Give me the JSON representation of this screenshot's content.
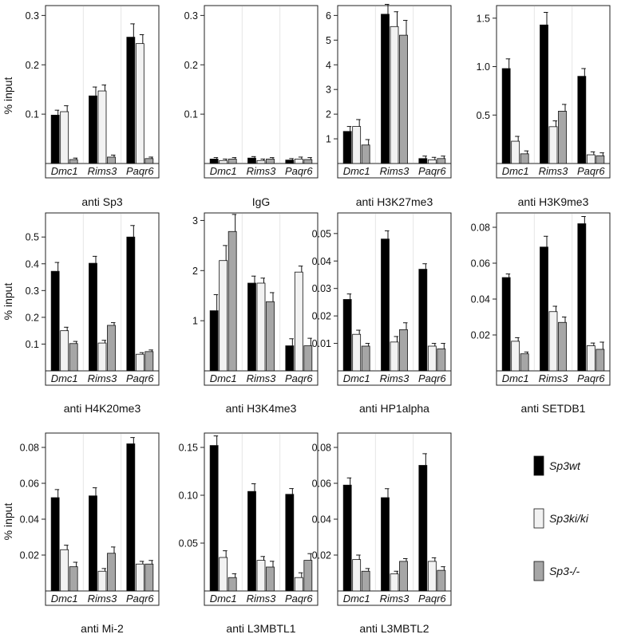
{
  "colors": {
    "Sp3wt": "#000000",
    "Sp3ki/ki": "#f2f2f2",
    "Sp3-/-": "#a6a6a6"
  },
  "legend": [
    {
      "name": "Sp3wt"
    },
    {
      "name": "Sp3ki/ki"
    },
    {
      "name": "Sp3-/-"
    }
  ],
  "y_axis_label": "% input",
  "chart_data": [
    {
      "type": "bar",
      "title": "anti Sp3",
      "categories": [
        "Dmc1",
        "Rims3",
        "Paqr6"
      ],
      "ylim": [
        0,
        0.32
      ],
      "yticks": [
        0.1,
        0.2,
        0.3
      ],
      "ytick_labels": [
        "0.1",
        "0.2",
        "0.3"
      ],
      "series": [
        {
          "name": "Sp3wt",
          "values": [
            0.098,
            0.137,
            0.256
          ],
          "errors": [
            0.01,
            0.018,
            0.027
          ]
        },
        {
          "name": "Sp3ki/ki",
          "values": [
            0.105,
            0.147,
            0.243
          ],
          "errors": [
            0.012,
            0.012,
            0.018
          ]
        },
        {
          "name": "Sp3-/-",
          "values": [
            0.008,
            0.013,
            0.01
          ],
          "errors": [
            0.003,
            0.004,
            0.003
          ]
        }
      ]
    },
    {
      "type": "bar",
      "title": "IgG",
      "categories": [
        "Dmc1",
        "Rims3",
        "Paqr6"
      ],
      "ylim": [
        0,
        0.32
      ],
      "yticks": [
        0.1,
        0.2,
        0.3
      ],
      "ytick_labels": [
        "0.1",
        "0.2",
        "0.3"
      ],
      "series": [
        {
          "name": "Sp3wt",
          "values": [
            0.009,
            0.011,
            0.007
          ],
          "errors": [
            0.003,
            0.003,
            0.003
          ]
        },
        {
          "name": "Sp3ki/ki",
          "values": [
            0.006,
            0.006,
            0.009
          ],
          "errors": [
            0.003,
            0.003,
            0.004
          ]
        },
        {
          "name": "Sp3-/-",
          "values": [
            0.009,
            0.009,
            0.008
          ],
          "errors": [
            0.003,
            0.003,
            0.004
          ]
        }
      ]
    },
    {
      "type": "bar",
      "title": "anti H3K27me3",
      "categories": [
        "Dmc1",
        "Rims3",
        "Paqr6"
      ],
      "ylim": [
        0,
        6.4
      ],
      "yticks": [
        1,
        2,
        3,
        4,
        5,
        6
      ],
      "ytick_labels": [
        "1",
        "2",
        "3",
        "4",
        "5",
        "6"
      ],
      "series": [
        {
          "name": "Sp3wt",
          "values": [
            1.3,
            6.05,
            0.2
          ],
          "errors": [
            0.2,
            0.4,
            0.1
          ]
        },
        {
          "name": "Sp3ki/ki",
          "values": [
            1.5,
            5.55,
            0.15
          ],
          "errors": [
            0.28,
            0.6,
            0.1
          ]
        },
        {
          "name": "Sp3-/-",
          "values": [
            0.75,
            5.2,
            0.2
          ],
          "errors": [
            0.22,
            0.6,
            0.1
          ]
        }
      ]
    },
    {
      "type": "bar",
      "title": "anti H3K9me3",
      "categories": [
        "Dmc1",
        "Rims3",
        "Paqr6"
      ],
      "ylim": [
        0,
        1.63
      ],
      "yticks": [
        0.5,
        1.0,
        1.5
      ],
      "ytick_labels": [
        "0.5",
        "1.0",
        "1.5"
      ],
      "series": [
        {
          "name": "Sp3wt",
          "values": [
            0.98,
            1.43,
            0.9
          ],
          "errors": [
            0.1,
            0.13,
            0.08
          ]
        },
        {
          "name": "Sp3ki/ki",
          "values": [
            0.23,
            0.38,
            0.09
          ],
          "errors": [
            0.05,
            0.06,
            0.03
          ]
        },
        {
          "name": "Sp3-/-",
          "values": [
            0.1,
            0.54,
            0.08
          ],
          "errors": [
            0.03,
            0.07,
            0.03
          ]
        }
      ]
    },
    {
      "type": "bar",
      "title": "anti H4K20me3",
      "categories": [
        "Dmc1",
        "Rims3",
        "Paqr6"
      ],
      "ylim": [
        0,
        0.59
      ],
      "yticks": [
        0.1,
        0.2,
        0.3,
        0.4,
        0.5
      ],
      "ytick_labels": [
        "0.1",
        "0.2",
        "0.3",
        "0.4",
        "0.5"
      ],
      "series": [
        {
          "name": "Sp3wt",
          "values": [
            0.372,
            0.402,
            0.5
          ],
          "errors": [
            0.033,
            0.026,
            0.043
          ]
        },
        {
          "name": "Sp3ki/ki",
          "values": [
            0.15,
            0.104,
            0.062
          ],
          "errors": [
            0.013,
            0.01,
            0.006
          ]
        },
        {
          "name": "Sp3-/-",
          "values": [
            0.102,
            0.17,
            0.072
          ],
          "errors": [
            0.008,
            0.01,
            0.006
          ]
        }
      ]
    },
    {
      "type": "bar",
      "title": "anti H3K4me3",
      "categories": [
        "Dmc1",
        "Rims3",
        "Paqr6"
      ],
      "ylim": [
        0,
        3.15
      ],
      "yticks": [
        1,
        2,
        3
      ],
      "ytick_labels": [
        "1",
        "2",
        "3"
      ],
      "series": [
        {
          "name": "Sp3wt",
          "values": [
            1.2,
            1.75,
            0.5
          ],
          "errors": [
            0.32,
            0.14,
            0.14
          ]
        },
        {
          "name": "Sp3ki/ki",
          "values": [
            2.2,
            1.75,
            1.97
          ],
          "errors": [
            0.3,
            0.1,
            0.12
          ]
        },
        {
          "name": "Sp3-/-",
          "values": [
            2.78,
            1.38,
            0.5
          ],
          "errors": [
            0.34,
            0.18,
            0.15
          ]
        }
      ]
    },
    {
      "type": "bar",
      "title": "anti HP1alpha",
      "categories": [
        "Dmc1",
        "Rims3",
        "Paqr6"
      ],
      "ylim": [
        0,
        0.0575
      ],
      "yticks": [
        0.01,
        0.02,
        0.03,
        0.04,
        0.05
      ],
      "ytick_labels": [
        "0.01",
        "0.02",
        "0.03",
        "0.04",
        "0.05"
      ],
      "series": [
        {
          "name": "Sp3wt",
          "values": [
            0.026,
            0.048,
            0.037
          ],
          "errors": [
            0.002,
            0.003,
            0.002
          ]
        },
        {
          "name": "Sp3ki/ki",
          "values": [
            0.0133,
            0.0105,
            0.009
          ],
          "errors": [
            0.0015,
            0.002,
            0.001
          ]
        },
        {
          "name": "Sp3-/-",
          "values": [
            0.009,
            0.015,
            0.008
          ],
          "errors": [
            0.001,
            0.0025,
            0.002
          ]
        }
      ]
    },
    {
      "type": "bar",
      "title": "anti SETDB1",
      "categories": [
        "Dmc1",
        "Rims3",
        "Paqr6"
      ],
      "ylim": [
        0,
        0.088
      ],
      "yticks": [
        0.02,
        0.04,
        0.06,
        0.08
      ],
      "ytick_labels": [
        "0.02",
        "0.04",
        "0.06",
        "0.08"
      ],
      "series": [
        {
          "name": "Sp3wt",
          "values": [
            0.052,
            0.069,
            0.082
          ],
          "errors": [
            0.002,
            0.006,
            0.004
          ]
        },
        {
          "name": "Sp3ki/ki",
          "values": [
            0.0165,
            0.033,
            0.014
          ],
          "errors": [
            0.002,
            0.003,
            0.0015
          ]
        },
        {
          "name": "Sp3-/-",
          "values": [
            0.0095,
            0.027,
            0.012
          ],
          "errors": [
            0.001,
            0.003,
            0.004
          ]
        }
      ]
    },
    {
      "type": "bar",
      "title": "anti Mi-2",
      "categories": [
        "Dmc1",
        "Rims3",
        "Paqr6"
      ],
      "ylim": [
        0,
        0.088
      ],
      "yticks": [
        0.02,
        0.04,
        0.06,
        0.08
      ],
      "ytick_labels": [
        "0.02",
        "0.04",
        "0.06",
        "0.08"
      ],
      "series": [
        {
          "name": "Sp3wt",
          "values": [
            0.052,
            0.053,
            0.082
          ],
          "errors": [
            0.0045,
            0.0045,
            0.0035
          ]
        },
        {
          "name": "Sp3ki/ki",
          "values": [
            0.023,
            0.011,
            0.015
          ],
          "errors": [
            0.0025,
            0.0015,
            0.0015
          ]
        },
        {
          "name": "Sp3-/-",
          "values": [
            0.0135,
            0.021,
            0.015
          ],
          "errors": [
            0.0025,
            0.0035,
            0.002
          ]
        }
      ]
    },
    {
      "type": "bar",
      "title": "anti L3MBTL1",
      "categories": [
        "Dmc1",
        "Rims3",
        "Paqr6"
      ],
      "ylim": [
        0,
        0.165
      ],
      "yticks": [
        0.05,
        0.1,
        0.15
      ],
      "ytick_labels": [
        "0.05",
        "0.10",
        "0.15"
      ],
      "series": [
        {
          "name": "Sp3wt",
          "values": [
            0.152,
            0.104,
            0.101
          ],
          "errors": [
            0.01,
            0.008,
            0.006
          ]
        },
        {
          "name": "Sp3ki/ki",
          "values": [
            0.035,
            0.032,
            0.014
          ],
          "errors": [
            0.007,
            0.004,
            0.005
          ]
        },
        {
          "name": "Sp3-/-",
          "values": [
            0.014,
            0.025,
            0.032
          ],
          "errors": [
            0.004,
            0.006,
            0.007
          ]
        }
      ]
    },
    {
      "type": "bar",
      "title": "anti L3MBTL2",
      "categories": [
        "Dmc1",
        "Rims3",
        "Paqr6"
      ],
      "ylim": [
        0,
        0.088
      ],
      "yticks": [
        0.02,
        0.04,
        0.06,
        0.08
      ],
      "ytick_labels": [
        "0.02",
        "0.04",
        "0.06",
        "0.08"
      ],
      "series": [
        {
          "name": "Sp3wt",
          "values": [
            0.059,
            0.052,
            0.07
          ],
          "errors": [
            0.004,
            0.005,
            0.0065
          ]
        },
        {
          "name": "Sp3ki/ki",
          "values": [
            0.0175,
            0.0095,
            0.0165
          ],
          "errors": [
            0.0025,
            0.0015,
            0.002
          ]
        },
        {
          "name": "Sp3-/-",
          "values": [
            0.011,
            0.0165,
            0.0115
          ],
          "errors": [
            0.0015,
            0.0015,
            0.002
          ]
        }
      ]
    }
  ]
}
